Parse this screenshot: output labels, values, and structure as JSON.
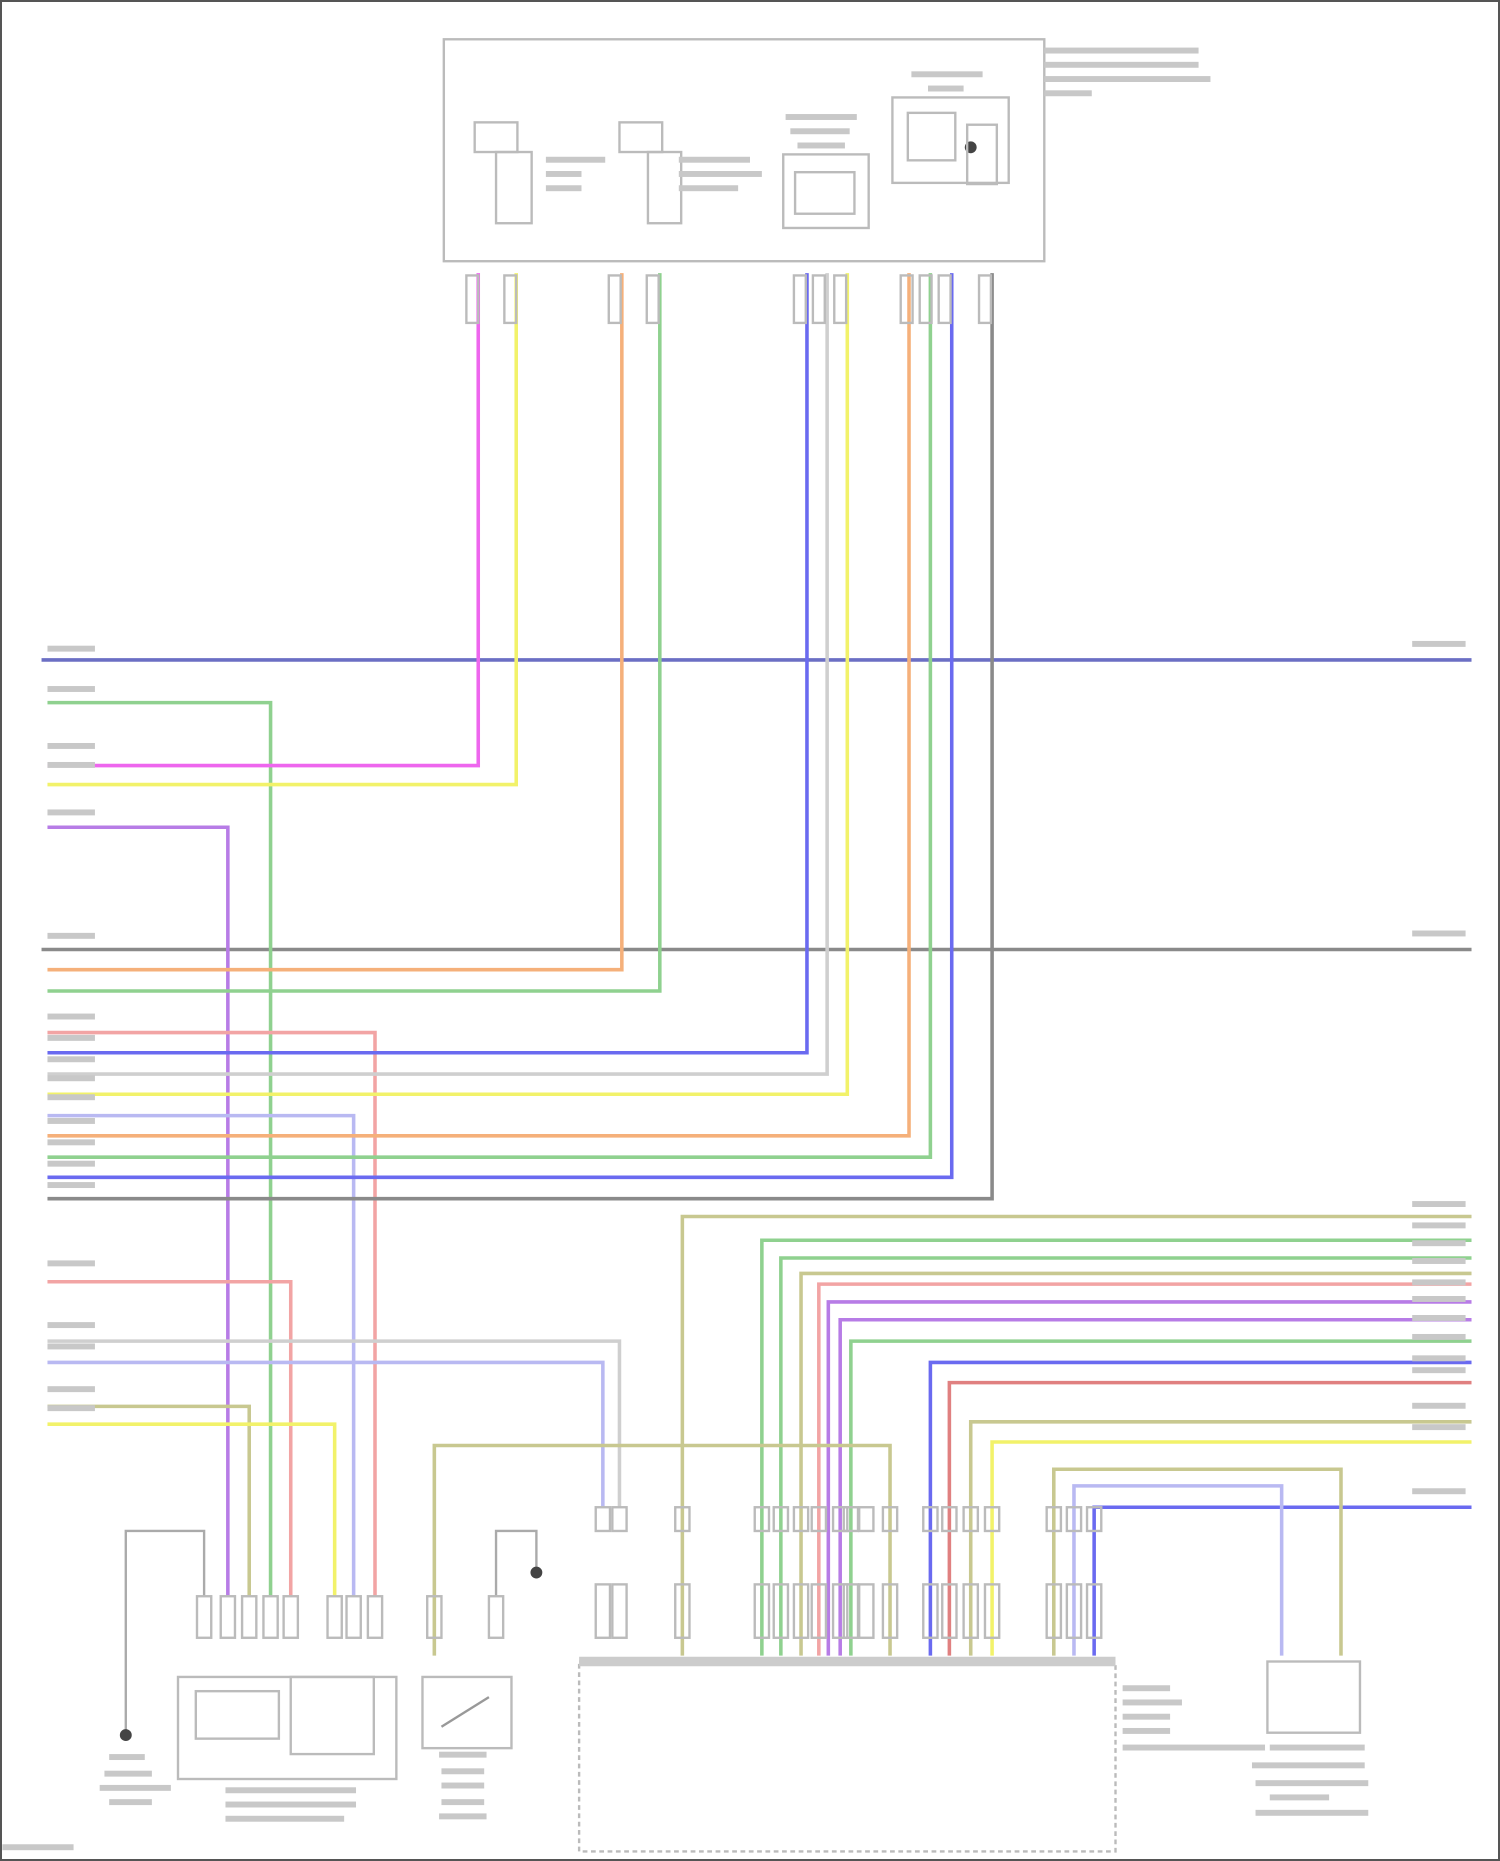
{
  "diagram": {
    "type": "wiring-diagram",
    "text_legible": false,
    "wire_colors": {
      "blue_gray": "#6b6fc4",
      "gray": "#8a8a8a",
      "green": "#8fd18f",
      "magenta": "#ee66ee",
      "yellow": "#f2f26a",
      "purple": "#b77ce6",
      "orange": "#f5b07a",
      "pink": "#f2a4a4",
      "blue": "#6a6af0",
      "light_gray": "#cfcfcf",
      "lavender": "#b9b9f2",
      "olive": "#c8c890",
      "red": "#e08080"
    },
    "components": [
      {
        "id": "top-sensor-assembly"
      },
      {
        "id": "ground-left"
      },
      {
        "id": "switch-module"
      },
      {
        "id": "switch"
      },
      {
        "id": "control-module"
      },
      {
        "id": "right-sensor"
      }
    ]
  }
}
